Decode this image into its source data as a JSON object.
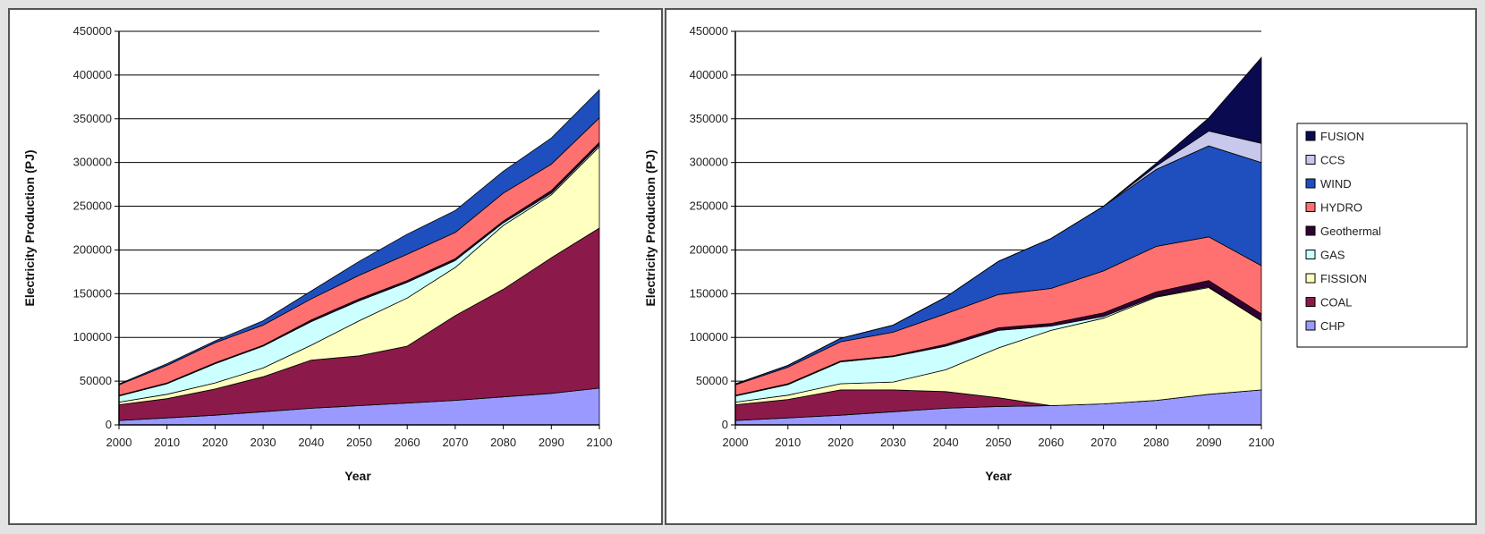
{
  "charts": [
    {
      "type": "area",
      "stacked": true,
      "title": "",
      "xlabel": "Year",
      "ylabel": "Electricity Production (PJ)",
      "ylim": [
        0,
        450000
      ],
      "yticks": [
        0,
        50000,
        100000,
        150000,
        200000,
        250000,
        300000,
        350000,
        400000,
        450000
      ],
      "x": [
        2000,
        2010,
        2020,
        2030,
        2040,
        2050,
        2060,
        2070,
        2080,
        2090,
        2100
      ],
      "grid": true,
      "legend": "none",
      "series": [
        {
          "name": "CHP",
          "color": "#9999ff",
          "values": [
            5000,
            8000,
            11000,
            15000,
            19000,
            22000,
            25000,
            28000,
            32000,
            36000,
            42000
          ]
        },
        {
          "name": "COAL",
          "color": "#8b1a4a",
          "values": [
            18000,
            22000,
            30000,
            40000,
            55000,
            57000,
            65000,
            97000,
            123000,
            155000,
            183000
          ]
        },
        {
          "name": "FISSION",
          "color": "#ffffc0",
          "values": [
            3000,
            5000,
            7000,
            10000,
            17000,
            40000,
            55000,
            55000,
            73000,
            72000,
            93000
          ]
        },
        {
          "name": "GAS",
          "color": "#ccffff",
          "values": [
            7000,
            12000,
            22000,
            25000,
            27000,
            23000,
            18000,
            8000,
            3000,
            2000,
            2000
          ]
        },
        {
          "name": "Geothermal",
          "color": "#330033",
          "values": [
            800,
            1000,
            1000,
            1000,
            2000,
            2000,
            2000,
            2000,
            2000,
            3000,
            3000
          ]
        },
        {
          "name": "HYDRO",
          "color": "#ff7070",
          "values": [
            12000,
            20000,
            23000,
            23000,
            24000,
            27000,
            30000,
            30000,
            32000,
            30000,
            28000
          ]
        },
        {
          "name": "WIND",
          "color": "#1f4fbf",
          "values": [
            1000,
            2000,
            2000,
            5000,
            9000,
            16000,
            23000,
            25000,
            25000,
            30000,
            32000
          ]
        },
        {
          "name": "CCS",
          "color": "#c8c8ec",
          "values": [
            0,
            0,
            0,
            0,
            0,
            0,
            0,
            0,
            0,
            0,
            0
          ]
        },
        {
          "name": "FUSION",
          "color": "#0a0a50",
          "values": [
            0,
            0,
            0,
            0,
            0,
            0,
            0,
            0,
            0,
            0,
            0
          ]
        }
      ]
    },
    {
      "type": "area",
      "stacked": true,
      "title": "",
      "xlabel": "Year",
      "ylabel": "Electricity Production (PJ)",
      "ylim": [
        0,
        450000
      ],
      "yticks": [
        0,
        50000,
        100000,
        150000,
        200000,
        250000,
        300000,
        350000,
        400000,
        450000
      ],
      "x": [
        2000,
        2010,
        2020,
        2030,
        2040,
        2050,
        2060,
        2070,
        2080,
        2090,
        2100
      ],
      "grid": true,
      "legend": "right",
      "series": [
        {
          "name": "CHP",
          "color": "#9999ff",
          "values": [
            5000,
            8000,
            11000,
            15000,
            19000,
            21000,
            22000,
            24000,
            28000,
            35000,
            40000
          ]
        },
        {
          "name": "COAL",
          "color": "#8b1a4a",
          "values": [
            18000,
            21000,
            29000,
            25000,
            19000,
            10000,
            0,
            0,
            0,
            0,
            0
          ]
        },
        {
          "name": "FISSION",
          "color": "#ffffc0",
          "values": [
            3000,
            5000,
            7000,
            9000,
            25000,
            57000,
            86000,
            98000,
            118000,
            122000,
            79000
          ]
        },
        {
          "name": "GAS",
          "color": "#ccffff",
          "values": [
            7000,
            12000,
            25000,
            29000,
            27000,
            20000,
            5000,
            2000,
            1000,
            1000,
            0
          ]
        },
        {
          "name": "Geothermal",
          "color": "#330033",
          "values": [
            800,
            1000,
            1000,
            1000,
            2000,
            3000,
            3000,
            4000,
            5000,
            7000,
            8000
          ]
        },
        {
          "name": "HYDRO",
          "color": "#ff7070",
          "values": [
            12000,
            19000,
            22000,
            27000,
            35000,
            38000,
            40000,
            48000,
            52000,
            50000,
            55000
          ]
        },
        {
          "name": "WIND",
          "color": "#1f4fbf",
          "values": [
            1000,
            2000,
            4000,
            8000,
            19000,
            38000,
            57000,
            74000,
            88000,
            104000,
            118000
          ]
        },
        {
          "name": "CCS",
          "color": "#c8c8ec",
          "values": [
            0,
            0,
            0,
            0,
            0,
            0,
            0,
            0,
            4000,
            17000,
            22000
          ]
        },
        {
          "name": "FUSION",
          "color": "#0a0a50",
          "values": [
            0,
            0,
            0,
            0,
            0,
            0,
            0,
            0,
            3000,
            15000,
            98000
          ]
        }
      ]
    }
  ],
  "legend": {
    "entries": [
      {
        "label": "FUSION",
        "color": "#0a0a50"
      },
      {
        "label": "CCS",
        "color": "#c8c8ec"
      },
      {
        "label": "WIND",
        "color": "#1f4fbf"
      },
      {
        "label": "HYDRO",
        "color": "#ff7070"
      },
      {
        "label": "Geothermal",
        "color": "#330033"
      },
      {
        "label": "GAS",
        "color": "#ccffff"
      },
      {
        "label": "FISSION",
        "color": "#ffffc0"
      },
      {
        "label": "COAL",
        "color": "#8b1a4a"
      },
      {
        "label": "CHP",
        "color": "#9999ff"
      }
    ]
  }
}
